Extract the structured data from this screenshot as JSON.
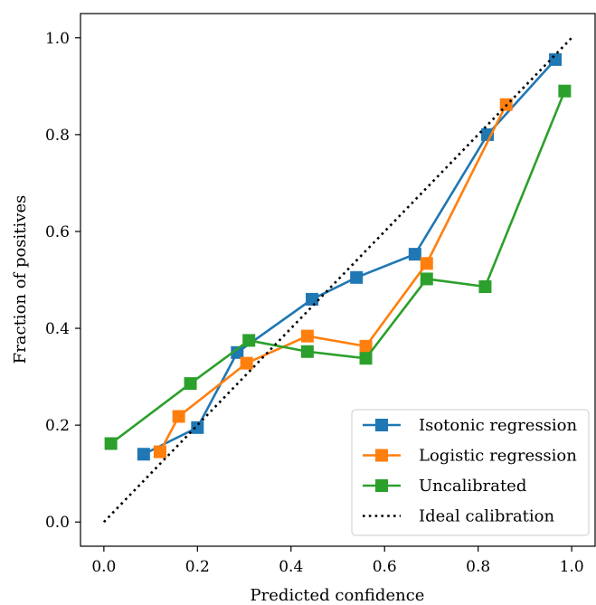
{
  "chart_data": {
    "type": "line",
    "xlabel": "Predicted confidence",
    "ylabel": "Fraction of positives",
    "xlim": [
      -0.05,
      1.05
    ],
    "ylim": [
      -0.05,
      1.05
    ],
    "xticks": [
      0.0,
      0.2,
      0.4,
      0.6,
      0.8,
      1.0
    ],
    "yticks": [
      0.0,
      0.2,
      0.4,
      0.6,
      0.8,
      1.0
    ],
    "xtick_labels": [
      "0.0",
      "0.2",
      "0.4",
      "0.6",
      "0.8",
      "1.0"
    ],
    "ytick_labels": [
      "0.0",
      "0.2",
      "0.4",
      "0.6",
      "0.8",
      "1.0"
    ],
    "legend_position": "bottom-right",
    "series": [
      {
        "name": "Isotonic regression",
        "color": "#1f77b4",
        "marker": "square",
        "x": [
          0.085,
          0.2,
          0.285,
          0.445,
          0.54,
          0.665,
          0.82,
          0.965
        ],
        "y": [
          0.14,
          0.195,
          0.35,
          0.46,
          0.505,
          0.553,
          0.8,
          0.955
        ]
      },
      {
        "name": "Logistic regression",
        "color": "#ff7f0e",
        "marker": "square",
        "x": [
          0.12,
          0.16,
          0.305,
          0.435,
          0.56,
          0.69,
          0.86
        ],
        "y": [
          0.145,
          0.218,
          0.328,
          0.384,
          0.363,
          0.534,
          0.862
        ]
      },
      {
        "name": "Uncalibrated",
        "color": "#2ca02c",
        "marker": "square",
        "x": [
          0.015,
          0.185,
          0.31,
          0.435,
          0.56,
          0.69,
          0.815,
          0.985
        ],
        "y": [
          0.162,
          0.286,
          0.375,
          0.352,
          0.338,
          0.502,
          0.486,
          0.89
        ]
      },
      {
        "name": "Ideal calibration",
        "color": "#000000",
        "style": "dotted",
        "x": [
          0.0,
          1.0
        ],
        "y": [
          0.0,
          1.0
        ]
      }
    ]
  }
}
